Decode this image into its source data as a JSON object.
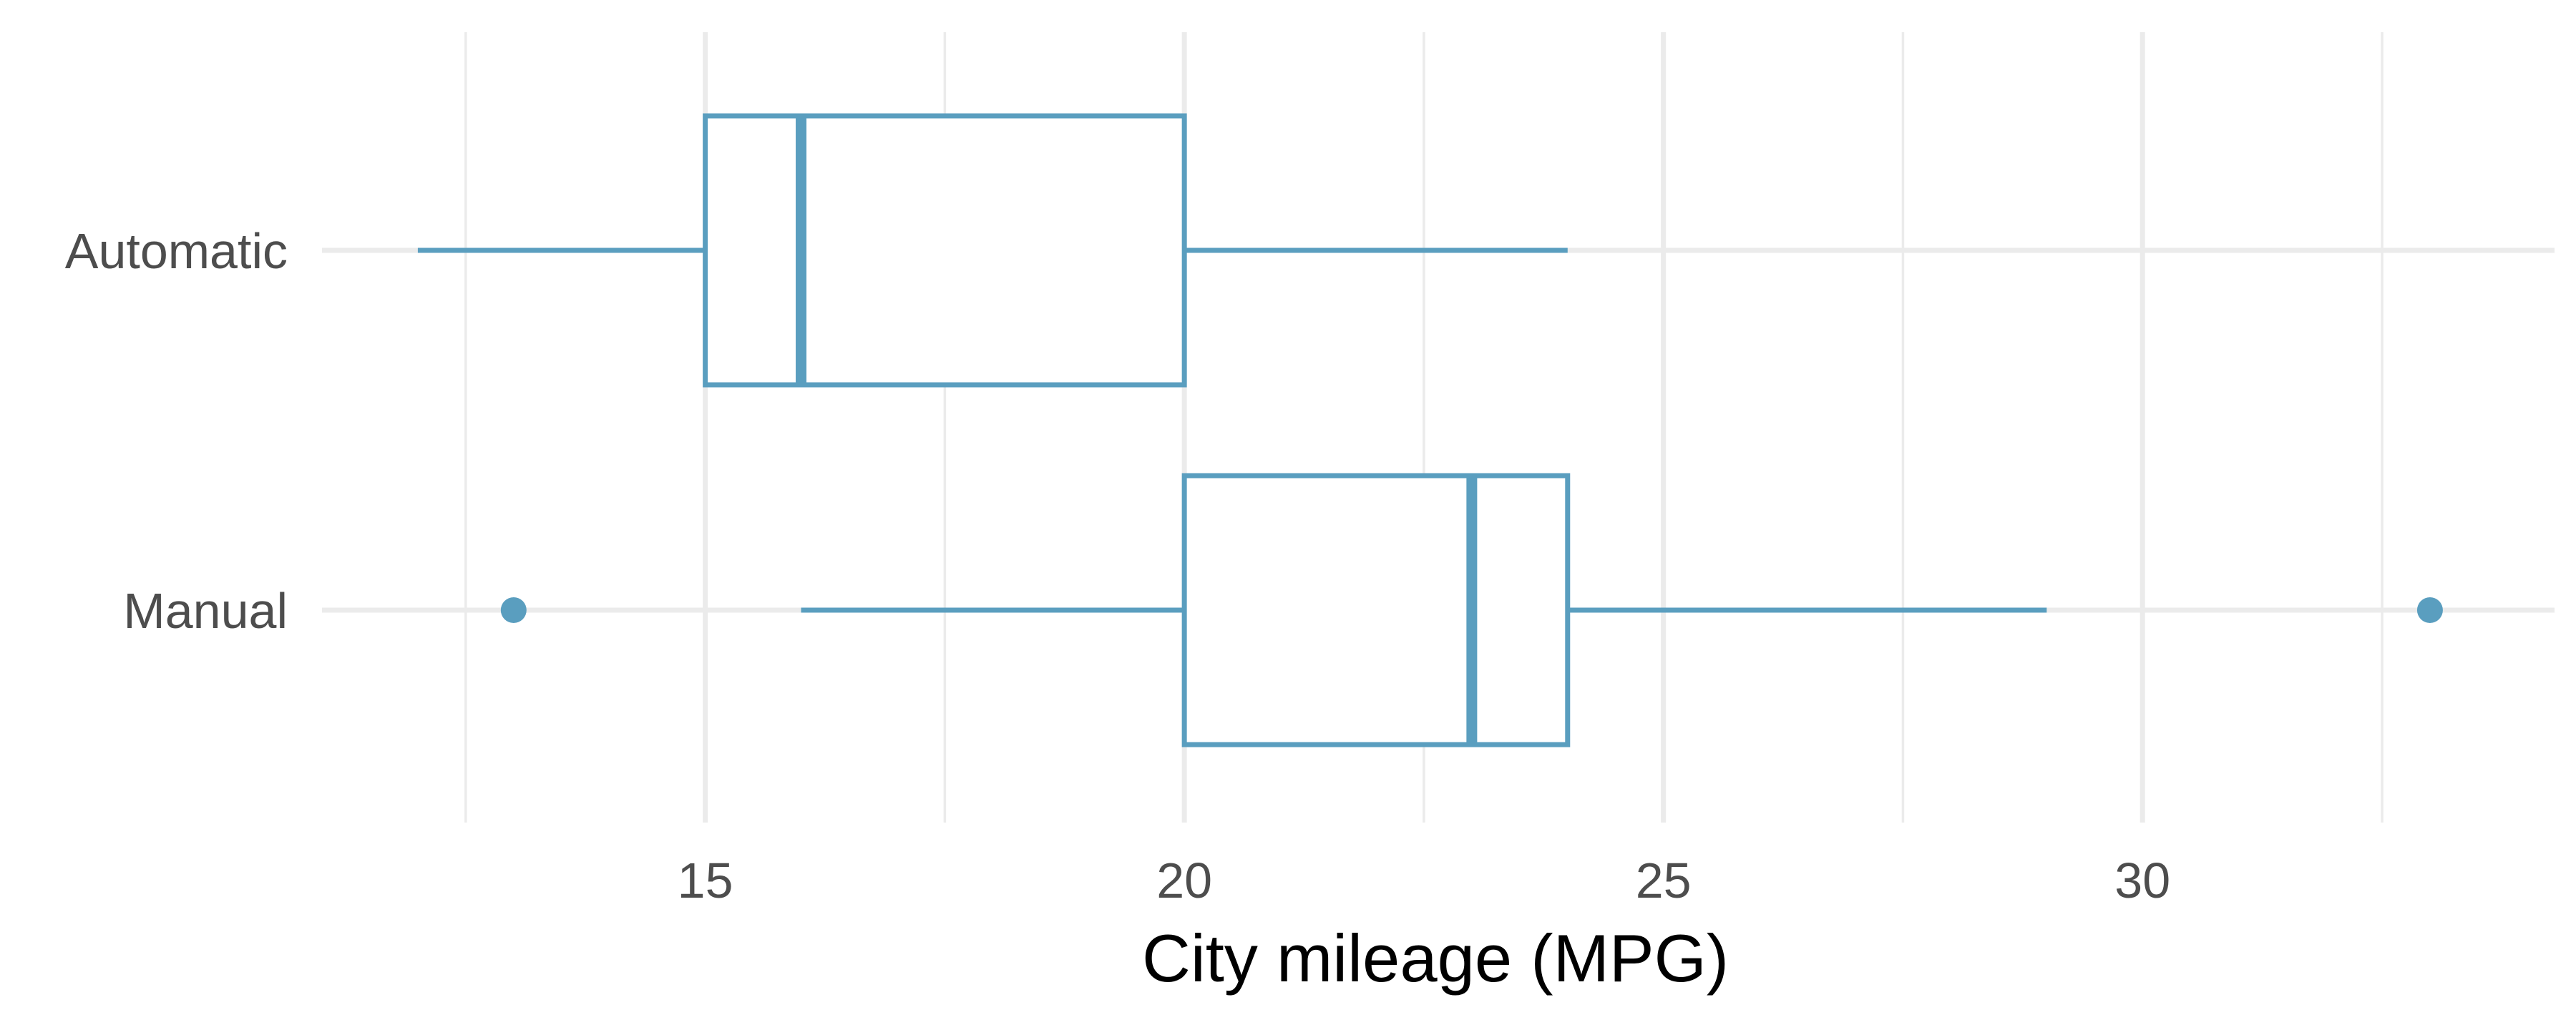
{
  "chart_data": {
    "type": "boxplot",
    "orientation": "horizontal",
    "title": "",
    "xlabel": "City mileage (MPG)",
    "ylabel": "",
    "xlim": [
      11,
      34.3
    ],
    "x_ticks": [
      15,
      20,
      25,
      30
    ],
    "x_minor_ticks": [
      12.5,
      17.5,
      22.5,
      27.5,
      32.5
    ],
    "categories": [
      "Automatic",
      "Manual"
    ],
    "series": [
      {
        "category": "Automatic",
        "whisker_low": 12,
        "q1": 15,
        "median": 16,
        "q3": 20,
        "whisker_high": 24,
        "outliers": []
      },
      {
        "category": "Manual",
        "whisker_low": 16,
        "q1": 20,
        "median": 23,
        "q3": 24,
        "whisker_high": 29,
        "outliers": [
          13,
          33
        ]
      }
    ],
    "grid": true,
    "legend": "none",
    "colors": {
      "box": "#5a9ebf",
      "grid": "#ebebeb",
      "text": "#4d4d4d",
      "title": "#000000"
    }
  }
}
